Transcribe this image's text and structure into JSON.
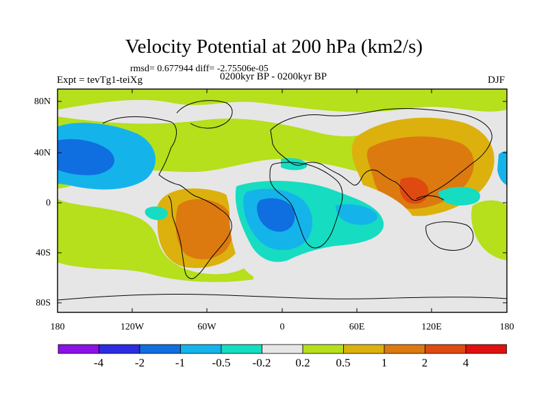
{
  "title": "Velocity Potential at 200 hPa (km2/s)",
  "stats": "rmsd= 0.677944  diff= -2.75506e-05",
  "experiment": "Expt = tevTg1-teiXg",
  "period": "0200kyr BP - 0200kyr BP",
  "season": "DJF",
  "latitude_labels": [
    "80N",
    "40N",
    "0",
    "40S",
    "80S"
  ],
  "longitude_labels": [
    "180",
    "120W",
    "60W",
    "0",
    "60E",
    "120E",
    "180"
  ],
  "colorbar": {
    "labels": [
      "-4",
      "-2",
      "-1",
      "-0.5",
      "-0.2",
      "0.2",
      "0.5",
      "1",
      "2",
      "4"
    ],
    "colors": [
      "#8a12e6",
      "#2c2ce0",
      "#0f6fe0",
      "#14b4ea",
      "#16dcc2",
      "#e6e6e6",
      "#b6df1c",
      "#dcb10e",
      "#dc7a10",
      "#de4a10",
      "#e01010"
    ]
  },
  "palette": {
    "background": "#e6e6e6",
    "coast": "#000000"
  }
}
